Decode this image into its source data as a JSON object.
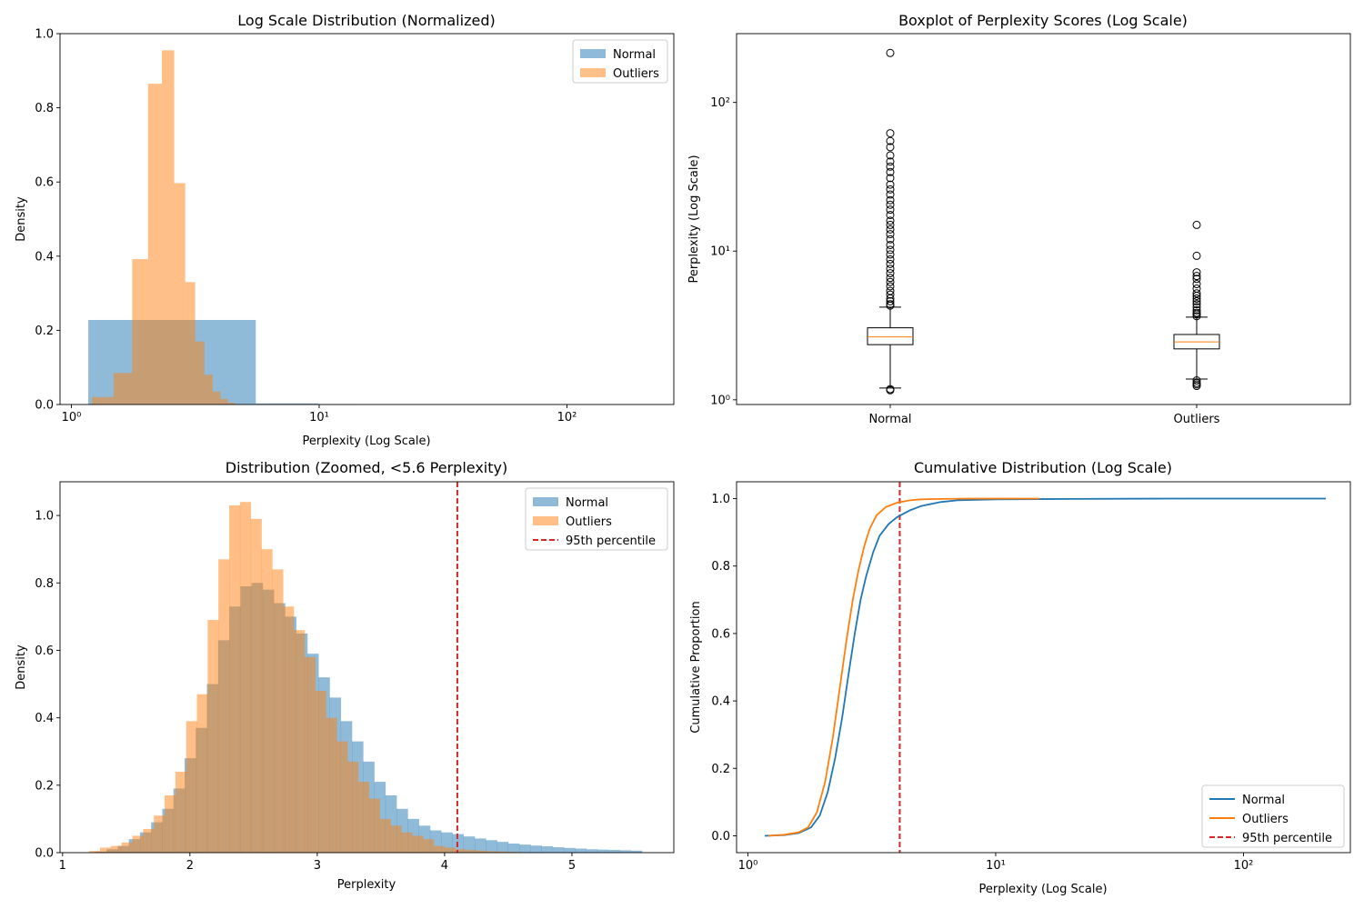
{
  "chart_data": [
    {
      "id": "hist_log",
      "type": "bar",
      "title": "Log Scale Distribution (Normalized)",
      "xlabel": "Perplexity (Log Scale)",
      "ylabel": "Density",
      "xscale": "log",
      "xlim": [
        0.9,
        270
      ],
      "ylim": [
        0,
        1.0
      ],
      "yticks": [
        0.0,
        0.2,
        0.4,
        0.6,
        0.8,
        1.0
      ],
      "ytick_labels": [
        "0.0",
        "0.2",
        "0.4",
        "0.6",
        "0.8",
        "1.0"
      ],
      "xticks": [
        1,
        10,
        100
      ],
      "xtick_labels": [
        "10⁰",
        "10¹",
        "10²"
      ],
      "legend": "top-right",
      "series": [
        {
          "name": "Normal",
          "color": "#1f77b4",
          "alpha": 0.5,
          "bins": [
            {
              "x0": 1.17,
              "x1": 5.55,
              "y": 0.228
            },
            {
              "x0": 5.55,
              "x1": 9.9,
              "y": 0.003
            },
            {
              "x0": 9.9,
              "x1": 14.3,
              "y": 0.001
            }
          ]
        },
        {
          "name": "Outliers",
          "color": "#ff7f0e",
          "alpha": 0.5,
          "bins": [
            {
              "x0": 1.21,
              "x1": 1.48,
              "y": 0.02
            },
            {
              "x0": 1.48,
              "x1": 1.76,
              "y": 0.085
            },
            {
              "x0": 1.76,
              "x1": 2.04,
              "y": 0.392
            },
            {
              "x0": 2.04,
              "x1": 2.32,
              "y": 0.865
            },
            {
              "x0": 2.32,
              "x1": 2.6,
              "y": 0.955
            },
            {
              "x0": 2.6,
              "x1": 2.88,
              "y": 0.597
            },
            {
              "x0": 2.88,
              "x1": 3.16,
              "y": 0.33
            },
            {
              "x0": 3.16,
              "x1": 3.44,
              "y": 0.17
            },
            {
              "x0": 3.44,
              "x1": 3.72,
              "y": 0.08
            },
            {
              "x0": 3.72,
              "x1": 4.0,
              "y": 0.035
            },
            {
              "x0": 4.0,
              "x1": 4.28,
              "y": 0.015
            },
            {
              "x0": 4.28,
              "x1": 4.56,
              "y": 0.005
            }
          ]
        }
      ]
    },
    {
      "id": "boxplot",
      "type": "box",
      "title": "Boxplot of Perplexity Scores (Log Scale)",
      "xlabel": "",
      "ylabel": "Perplexity (Log Scale)",
      "yscale": "log",
      "ylim": [
        0.93,
        290
      ],
      "yticks": [
        1,
        10,
        100
      ],
      "ytick_labels": [
        "10⁰",
        "10¹",
        "10²"
      ],
      "categories": [
        "Normal",
        "Outliers"
      ],
      "boxes": [
        {
          "name": "Normal",
          "q1": 2.35,
          "median": 2.65,
          "q3": 3.05,
          "whisker_low": 1.2,
          "whisker_high": 4.2,
          "fliers": [
            215,
            62,
            55,
            50,
            44,
            40,
            37,
            34,
            31,
            28,
            26,
            24,
            22,
            20.5,
            19,
            17.5,
            16,
            15,
            14,
            13,
            12,
            11,
            10.2,
            9.5,
            8.8,
            8.2,
            7.6,
            7.1,
            6.6,
            6.2,
            5.8,
            5.4,
            5.1,
            4.8,
            4.6,
            4.4,
            4.3,
            1.16,
            1.18
          ]
        },
        {
          "name": "Outliers",
          "q1": 2.2,
          "median": 2.45,
          "q3": 2.75,
          "whisker_low": 1.38,
          "whisker_high": 3.6,
          "fliers": [
            15,
            9.3,
            7.2,
            6.8,
            6.5,
            6.0,
            5.6,
            5.2,
            5.0,
            4.8,
            4.6,
            4.4,
            4.2,
            4.0,
            3.85,
            3.75,
            3.65,
            1.35,
            1.3,
            1.27,
            1.24
          ]
        }
      ]
    },
    {
      "id": "hist_zoom",
      "type": "bar",
      "title": "Distribution (Zoomed, <5.6 Perplexity)",
      "xlabel": "Perplexity",
      "ylabel": "Density",
      "xlim": [
        0.98,
        5.8
      ],
      "ylim": [
        0,
        1.1
      ],
      "xticks": [
        1,
        2,
        3,
        4,
        5
      ],
      "xtick_labels": [
        "1",
        "2",
        "3",
        "4",
        "5"
      ],
      "yticks": [
        0.0,
        0.2,
        0.4,
        0.6,
        0.8,
        1.0
      ],
      "ytick_labels": [
        "0.0",
        "0.2",
        "0.4",
        "0.6",
        "0.8",
        "1.0"
      ],
      "legend": "top-right",
      "reference_line": {
        "name": "95th percentile",
        "x": 4.1,
        "color": "#d62728"
      },
      "series": [
        {
          "name": "Normal",
          "color": "#1f77b4",
          "alpha": 0.5,
          "x_start": 1.17,
          "bin_width": 0.0876,
          "values": [
            0.0,
            0.003,
            0.01,
            0.02,
            0.04,
            0.06,
            0.09,
            0.13,
            0.19,
            0.28,
            0.37,
            0.5,
            0.63,
            0.73,
            0.79,
            0.8,
            0.78,
            0.74,
            0.7,
            0.65,
            0.59,
            0.52,
            0.46,
            0.39,
            0.33,
            0.27,
            0.21,
            0.17,
            0.13,
            0.1,
            0.08,
            0.066,
            0.06,
            0.055,
            0.048,
            0.042,
            0.037,
            0.032,
            0.027,
            0.024,
            0.021,
            0.019,
            0.016,
            0.014,
            0.012,
            0.01,
            0.009,
            0.008,
            0.007,
            0.006
          ]
        },
        {
          "name": "Outliers",
          "color": "#ff7f0e",
          "alpha": 0.5,
          "x_start": 1.21,
          "bin_width": 0.0845,
          "values": [
            0.005,
            0.015,
            0.02,
            0.03,
            0.05,
            0.07,
            0.11,
            0.17,
            0.24,
            0.39,
            0.47,
            0.69,
            0.87,
            1.03,
            1.04,
            0.99,
            0.9,
            0.84,
            0.73,
            0.66,
            0.58,
            0.48,
            0.4,
            0.33,
            0.27,
            0.21,
            0.16,
            0.1,
            0.08,
            0.06,
            0.05,
            0.04,
            0.02,
            0.015,
            0.01,
            0.008,
            0.006,
            0.004,
            0.003,
            0.002
          ]
        }
      ]
    },
    {
      "id": "cdf",
      "type": "line",
      "title": "Cumulative Distribution (Log Scale)",
      "xlabel": "Perplexity (Log Scale)",
      "ylabel": "Cumulative Proportion",
      "xscale": "log",
      "xlim": [
        0.9,
        270
      ],
      "ylim": [
        -0.05,
        1.05
      ],
      "xticks": [
        1,
        10,
        100
      ],
      "xtick_labels": [
        "10⁰",
        "10¹",
        "10²"
      ],
      "yticks": [
        0.0,
        0.2,
        0.4,
        0.6,
        0.8,
        1.0
      ],
      "ytick_labels": [
        "0.0",
        "0.2",
        "0.4",
        "0.6",
        "0.8",
        "1.0"
      ],
      "legend": "bottom-right",
      "reference_line": {
        "name": "95th percentile",
        "x": 4.1,
        "color": "#d62728"
      },
      "series": [
        {
          "name": "Normal",
          "color": "#1f77b4",
          "x": [
            1.17,
            1.4,
            1.6,
            1.8,
            1.95,
            2.1,
            2.25,
            2.4,
            2.55,
            2.7,
            2.85,
            3.0,
            3.2,
            3.4,
            3.7,
            4.0,
            4.5,
            5.0,
            6.0,
            7.0,
            10,
            20,
            50,
            215
          ],
          "y": [
            0.0,
            0.002,
            0.008,
            0.025,
            0.06,
            0.13,
            0.23,
            0.35,
            0.48,
            0.6,
            0.7,
            0.77,
            0.84,
            0.89,
            0.925,
            0.945,
            0.965,
            0.978,
            0.99,
            0.995,
            0.998,
            0.999,
            1.0,
            1.0
          ]
        },
        {
          "name": "Outliers",
          "color": "#ff7f0e",
          "x": [
            1.21,
            1.4,
            1.6,
            1.75,
            1.9,
            2.05,
            2.2,
            2.35,
            2.5,
            2.65,
            2.8,
            2.95,
            3.1,
            3.3,
            3.6,
            4.0,
            4.5,
            5.0,
            6.0,
            8.0,
            15
          ],
          "y": [
            0.0,
            0.003,
            0.01,
            0.025,
            0.07,
            0.16,
            0.29,
            0.44,
            0.58,
            0.7,
            0.79,
            0.86,
            0.91,
            0.95,
            0.975,
            0.988,
            0.995,
            0.998,
            0.999,
            1.0,
            1.0
          ]
        }
      ]
    }
  ]
}
